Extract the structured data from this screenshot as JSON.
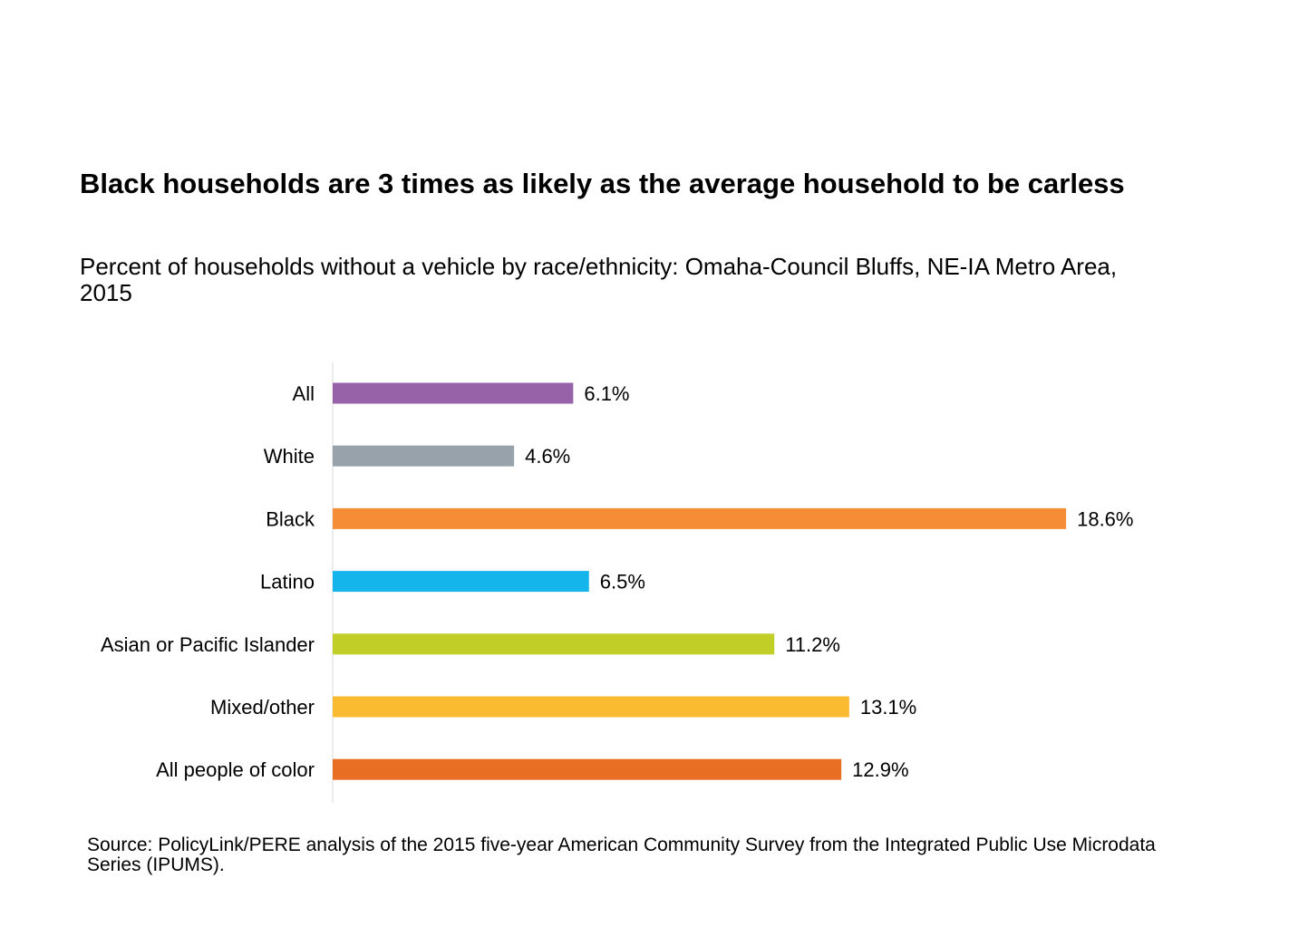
{
  "title": "Black households are 3 times as likely as the average household to be carless",
  "subtitle": "Percent of households without a vehicle by race/ethnicity: Omaha-Council Bluffs, NE-IA Metro Area, 2015",
  "source": "Source: PolicyLink/PERE analysis of the 2015 five-year American Community Survey from the Integrated Public Use Microdata Series (IPUMS).",
  "chart_data": {
    "type": "bar",
    "orientation": "horizontal",
    "title": "Black households are 3 times as likely as the average household to be carless",
    "subtitle": "Percent of households without a vehicle by race/ethnicity: Omaha-Council Bluffs, NE-IA Metro Area, 2015",
    "categories": [
      "All",
      "White",
      "Black",
      "Latino",
      "Asian or Pacific Islander",
      "Mixed/other",
      "All people of color"
    ],
    "values": [
      6.1,
      4.6,
      18.6,
      6.5,
      11.2,
      13.1,
      12.9
    ],
    "labels": [
      "6.1%",
      "4.6%",
      "18.6%",
      "6.5%",
      "11.2%",
      "13.1%",
      "12.9%"
    ],
    "colors": [
      "#9862A9",
      "#98A2AA",
      "#F48D35",
      "#14B5EA",
      "#C1CE28",
      "#FBBB31",
      "#E86E24"
    ],
    "xlim": [
      0,
      20
    ],
    "grid": false,
    "legend": "none"
  }
}
